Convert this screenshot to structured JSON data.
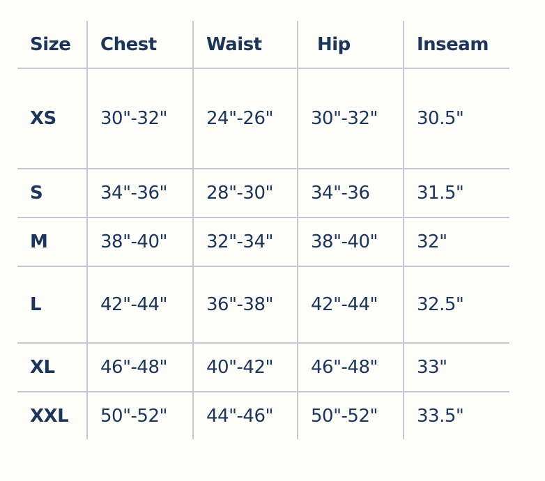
{
  "headers": [
    "Size",
    "Chest",
    "Waist",
    "Hip",
    "Inseam"
  ],
  "rows": [
    {
      "size": "XS",
      "chest": "30\"-32\"",
      "waist": "24\"-26\"",
      "hip": "30\"-32\"",
      "inseam": "30.5\""
    },
    {
      "size": "S",
      "chest": "34\"-36\"",
      "waist": "28\"-30\"",
      "hip": "34\"-36",
      "inseam": "31.5\""
    },
    {
      "size": "M",
      "chest": "38\"-40\"",
      "waist": "32\"-34\"",
      "hip": "38\"-40\"",
      "inseam": "32\""
    },
    {
      "size": "L",
      "chest": "42\"-44\"",
      "waist": "36\"-38\"",
      "hip": "42\"-44\"",
      "inseam": "32.5\""
    },
    {
      "size": "XL",
      "chest": "46\"-48\"",
      "waist": "40\"-42\"",
      "hip": "46\"-48\"",
      "inseam": "33\""
    },
    {
      "size": "XXL",
      "chest": "50\"-52\"",
      "waist": "44\"-46\"",
      "hip": "50\"-52\"",
      "inseam": "33.5\""
    }
  ],
  "colors": {
    "text": "#1e355a",
    "grid": "#c5c9d4",
    "background": "#fdfdf9"
  }
}
